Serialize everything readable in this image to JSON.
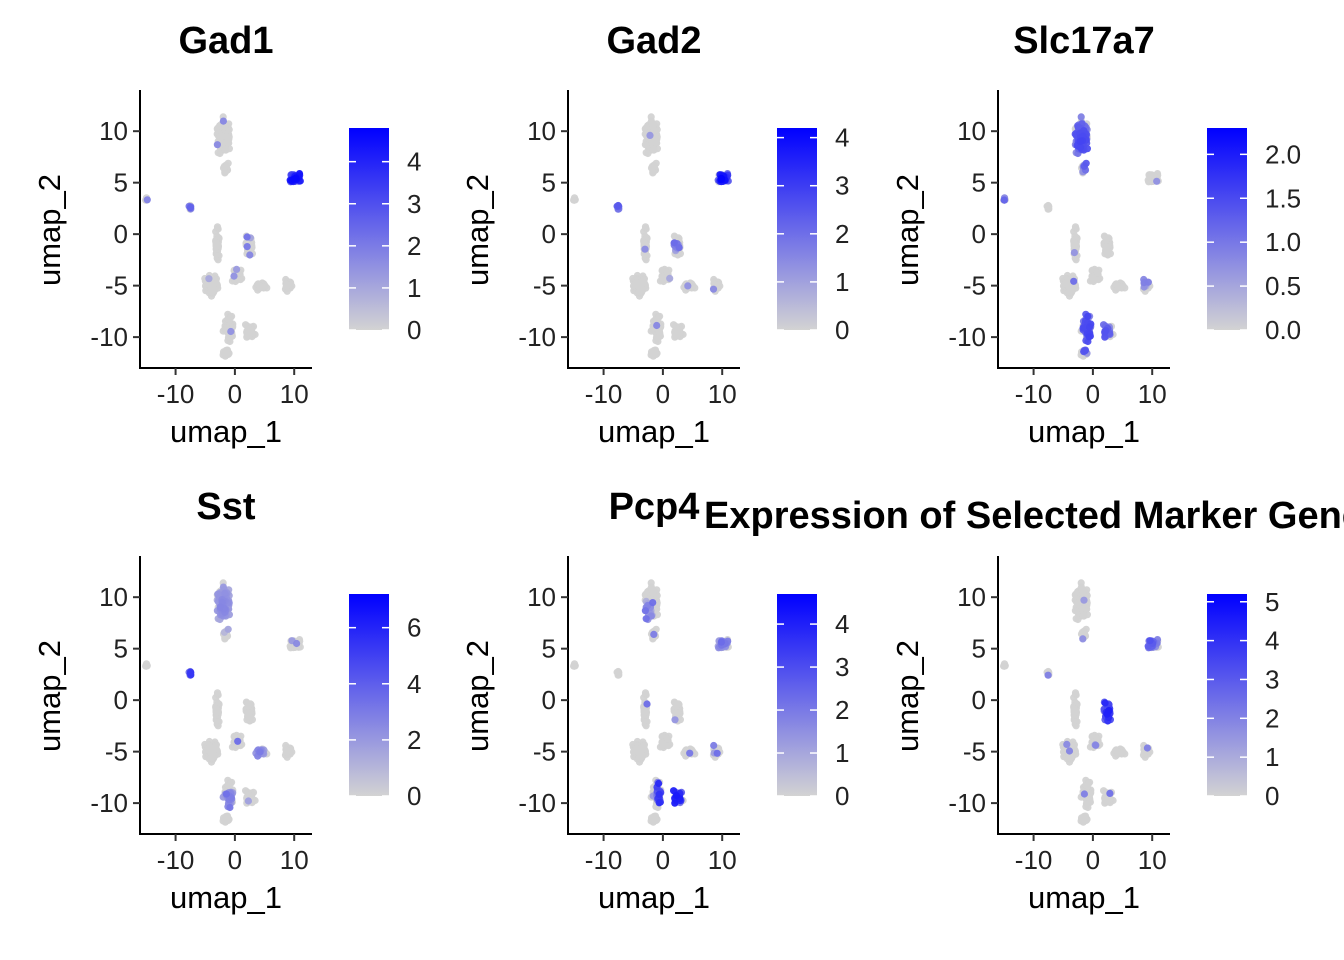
{
  "figure_title": "Expression of Selected Marker Genes",
  "colors": {
    "low": "#d3d3d3",
    "high": "#0000ff",
    "axis": "#000000",
    "title_fill": "#000000"
  },
  "chart_data": [
    {
      "type": "scatter",
      "title": "Gad1",
      "xlabel": "umap_1",
      "ylabel": "umap_2",
      "xlim": [
        -16,
        13
      ],
      "ylim": [
        -13,
        14
      ],
      "xticks": [
        -10,
        0,
        10
      ],
      "yticks": [
        -10,
        -5,
        0,
        5,
        10
      ],
      "xtick_labels": [
        "-10",
        "0",
        "10"
      ],
      "ytick_labels": [
        "-10",
        "-5",
        "0",
        "5",
        "10"
      ],
      "legend": {
        "min": 0,
        "max": 4.8,
        "ticks": [
          0,
          1,
          2,
          3,
          4
        ],
        "tick_labels": [
          "0",
          "1",
          "2",
          "3",
          "4"
        ]
      },
      "hotspots": [
        {
          "cx": 10,
          "cy": 5.5,
          "r": 2.2,
          "level": 0.85
        },
        {
          "cx": -7.5,
          "cy": 2.6,
          "r": 0.6,
          "level": 0.5
        },
        {
          "cx": 3,
          "cy": 0,
          "r": 0.8,
          "level": 0.35
        },
        {
          "cx": -6,
          "cy": -6,
          "r": 0.6,
          "level": 0.3
        }
      ]
    },
    {
      "type": "scatter",
      "title": "Gad2",
      "xlabel": "umap_1",
      "ylabel": "umap_2",
      "xlim": [
        -16,
        13
      ],
      "ylim": [
        -13,
        14
      ],
      "xticks": [
        -10,
        0,
        10
      ],
      "yticks": [
        -10,
        -5,
        0,
        5,
        10
      ],
      "xtick_labels": [
        "-10",
        "0",
        "10"
      ],
      "ytick_labels": [
        "-10",
        "-5",
        "0",
        "5",
        "10"
      ],
      "legend": {
        "min": 0,
        "max": 4.2,
        "ticks": [
          0,
          1,
          2,
          3,
          4
        ],
        "tick_labels": [
          "0",
          "1",
          "2",
          "3",
          "4"
        ]
      },
      "hotspots": [
        {
          "cx": 10,
          "cy": 5.5,
          "r": 2.2,
          "level": 0.85
        },
        {
          "cx": -7.5,
          "cy": 2.6,
          "r": 0.6,
          "level": 0.5
        },
        {
          "cx": 2,
          "cy": -1,
          "r": 0.7,
          "level": 0.4
        },
        {
          "cx": 8,
          "cy": -5.5,
          "r": 0.6,
          "level": 0.35
        }
      ]
    },
    {
      "type": "scatter",
      "title": "Slc17a7",
      "xlabel": "umap_1",
      "ylabel": "umap_2",
      "xlim": [
        -16,
        13
      ],
      "ylim": [
        -13,
        14
      ],
      "xticks": [
        -10,
        0,
        10
      ],
      "yticks": [
        -10,
        -5,
        0,
        5,
        10
      ],
      "xtick_labels": [
        "-10",
        "0",
        "10"
      ],
      "ytick_labels": [
        "-10",
        "-5",
        "0",
        "5",
        "10"
      ],
      "legend": {
        "min": 0,
        "max": 2.3,
        "ticks": [
          0,
          0.5,
          1,
          1.5,
          2
        ],
        "tick_labels": [
          "0.0",
          "0.5",
          "1.0",
          "1.5",
          "2.0"
        ]
      },
      "hotspots": [
        {
          "cx": -2,
          "cy": 9,
          "r": 3.2,
          "level": 0.55
        },
        {
          "cx": 0,
          "cy": -9,
          "r": 3,
          "level": 0.6
        },
        {
          "cx": -15,
          "cy": 3.5,
          "r": 0.6,
          "level": 0.5
        },
        {
          "cx": 8,
          "cy": -5,
          "r": 1,
          "level": 0.35
        }
      ]
    },
    {
      "type": "scatter",
      "title": "Sst",
      "xlabel": "umap_1",
      "ylabel": "umap_2",
      "xlim": [
        -16,
        13
      ],
      "ylim": [
        -13,
        14
      ],
      "xticks": [
        -10,
        0,
        10
      ],
      "yticks": [
        -10,
        -5,
        0,
        5,
        10
      ],
      "xtick_labels": [
        "-10",
        "0",
        "10"
      ],
      "ytick_labels": [
        "-10",
        "-5",
        "0",
        "5",
        "10"
      ],
      "legend": {
        "min": 0,
        "max": 7.2,
        "ticks": [
          0,
          2,
          4,
          6
        ],
        "tick_labels": [
          "0",
          "2",
          "4",
          "6"
        ]
      },
      "hotspots": [
        {
          "cx": -7.5,
          "cy": 2.5,
          "r": 0.6,
          "level": 0.65
        },
        {
          "cx": -2,
          "cy": 9,
          "r": 2.5,
          "level": 0.25
        },
        {
          "cx": -1,
          "cy": -10,
          "r": 1.2,
          "level": 0.35
        },
        {
          "cx": 4,
          "cy": -5,
          "r": 1,
          "level": 0.3
        }
      ]
    },
    {
      "type": "scatter",
      "title": "Pcp4",
      "xlabel": "umap_1",
      "ylabel": "umap_2",
      "xlim": [
        -16,
        13
      ],
      "ylim": [
        -13,
        14
      ],
      "xticks": [
        -10,
        0,
        10
      ],
      "yticks": [
        -10,
        -5,
        0,
        5,
        10
      ],
      "xtick_labels": [
        "-10",
        "0",
        "10"
      ],
      "ytick_labels": [
        "-10",
        "-5",
        "0",
        "5",
        "10"
      ],
      "legend": {
        "min": 0,
        "max": 4.7,
        "ticks": [
          0,
          1,
          2,
          3,
          4
        ],
        "tick_labels": [
          "0",
          "1",
          "2",
          "3",
          "4"
        ]
      },
      "hotspots": [
        {
          "cx": 1.5,
          "cy": -9,
          "r": 2.6,
          "level": 0.8
        },
        {
          "cx": -3.5,
          "cy": 8,
          "r": 1.8,
          "level": 0.4
        },
        {
          "cx": 10,
          "cy": 6,
          "r": 1.2,
          "level": 0.4
        },
        {
          "cx": -1,
          "cy": -3,
          "r": 1,
          "level": 0.3
        }
      ]
    },
    {
      "type": "scatter",
      "title": "",
      "xlabel": "umap_1",
      "ylabel": "umap_2",
      "xlim": [
        -16,
        13
      ],
      "ylim": [
        -13,
        14
      ],
      "xticks": [
        -10,
        0,
        10
      ],
      "yticks": [
        -10,
        -5,
        0,
        5,
        10
      ],
      "xtick_labels": [
        "-10",
        "0",
        "10"
      ],
      "ytick_labels": [
        "-10",
        "-5",
        "0",
        "5",
        "10"
      ],
      "legend": {
        "min": 0,
        "max": 5.2,
        "ticks": [
          0,
          1,
          2,
          3,
          4,
          5
        ],
        "tick_labels": [
          "0",
          "1",
          "2",
          "3",
          "4",
          "5"
        ]
      },
      "hotspots": [
        {
          "cx": 2.5,
          "cy": -1,
          "r": 1.6,
          "level": 0.75
        },
        {
          "cx": 9.5,
          "cy": 6,
          "r": 1.5,
          "level": 0.5
        },
        {
          "cx": 1,
          "cy": 7,
          "r": 0.8,
          "level": 0.4
        },
        {
          "cx": 7,
          "cy": -6,
          "r": 0.6,
          "level": 0.4
        }
      ]
    }
  ]
}
